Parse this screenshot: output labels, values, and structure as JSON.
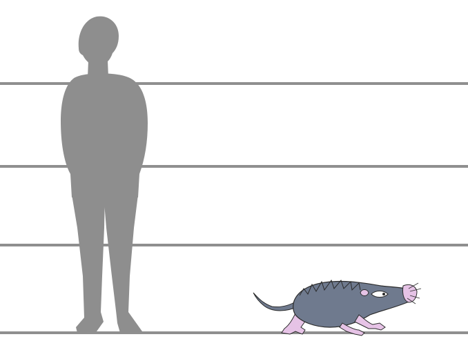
{
  "figure": {
    "type": "size comparison",
    "background": "#ffffff",
    "scale_lines": {
      "count": 4,
      "color": "#8f8f8f"
    },
    "subjects": [
      {
        "kind": "human silhouette",
        "color": "#8e8e8e"
      },
      {
        "kind": "small mammal illustration",
        "body_color": "#6f7a8e",
        "limb_color": "#e6c3e6",
        "eye_color": "#ffffff"
      }
    ]
  }
}
